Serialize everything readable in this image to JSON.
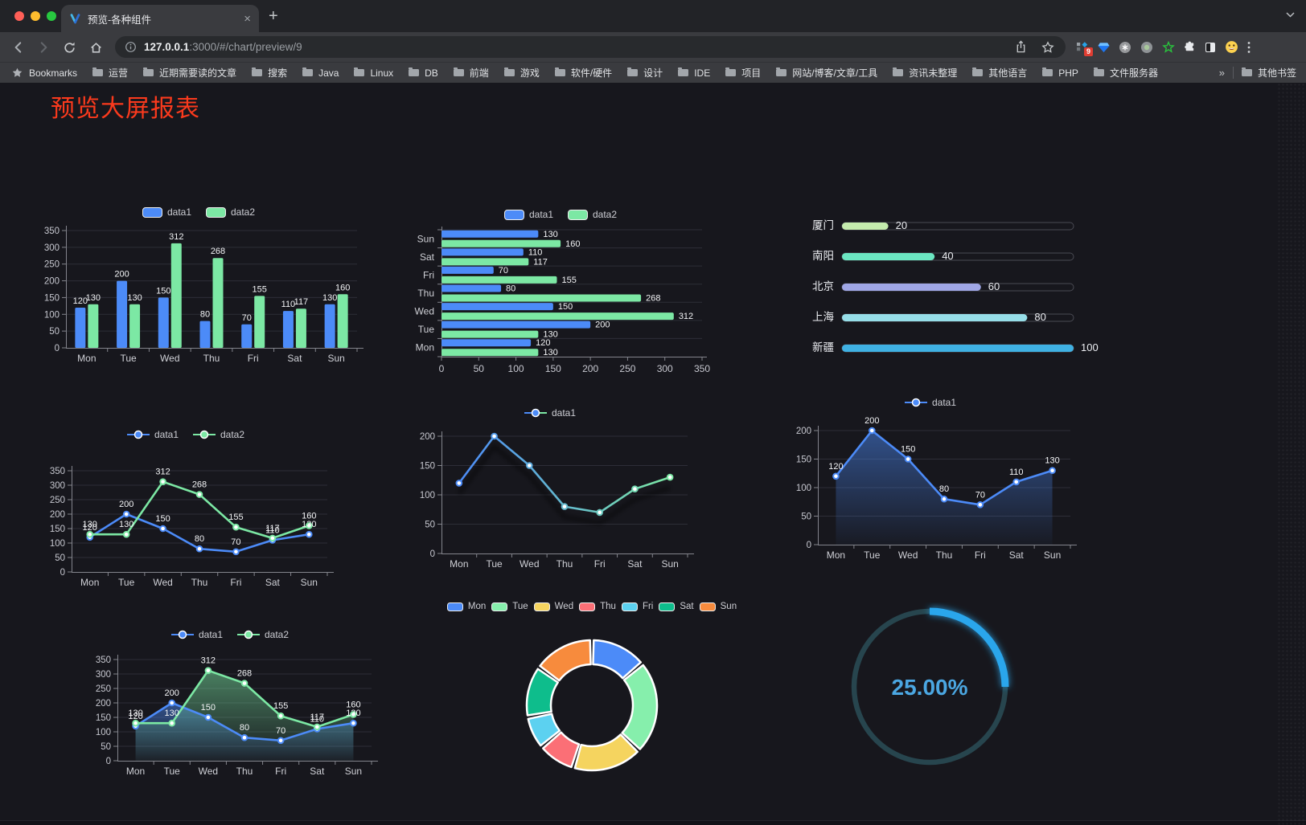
{
  "browser": {
    "tab": {
      "title": "预览-各种组件",
      "close_glyph": "×"
    },
    "new_tab_glyph": "+",
    "url": {
      "host": "127.0.0.1",
      "rest": ":3000/#/chart/preview/9"
    },
    "extensions_badge": "9",
    "bookmarks_label": "Bookmarks",
    "bookmarks": [
      "运营",
      "近期需要读的文章",
      "搜索",
      "Java",
      "Linux",
      "DB",
      "前端",
      "游戏",
      "软件/硬件",
      "设计",
      "IDE",
      "项目",
      "网站/博客/文章/工具",
      "资讯未整理",
      "其他语言",
      "PHP",
      "文件服务器"
    ],
    "bookmarks_overflow": "»",
    "other_bookmarks": "其他书签"
  },
  "page": {
    "title": "预览大屏报表",
    "title_color": "#fb3a1d",
    "background": "#17171d"
  },
  "chart_data": [
    {
      "id": "bar-vertical",
      "type": "bar",
      "orientation": "vertical",
      "categories": [
        "Mon",
        "Tue",
        "Wed",
        "Thu",
        "Fri",
        "Sat",
        "Sun"
      ],
      "series": [
        {
          "name": "data1",
          "color": "#4C8BF8",
          "values": [
            120,
            200,
            150,
            80,
            70,
            110,
            130
          ]
        },
        {
          "name": "data2",
          "color": "#7CE8A4",
          "values": [
            130,
            130,
            312,
            268,
            155,
            117,
            160
          ]
        }
      ],
      "ylim": [
        0,
        350
      ],
      "ytick_step": 50,
      "legend_position": "top",
      "grid": true,
      "value_labels": true
    },
    {
      "id": "bar-horizontal",
      "type": "bar",
      "orientation": "horizontal",
      "categories": [
        "Mon",
        "Tue",
        "Wed",
        "Thu",
        "Fri",
        "Sat",
        "Sun"
      ],
      "series": [
        {
          "name": "data1",
          "color": "#4C8BF8",
          "values": [
            120,
            200,
            150,
            80,
            70,
            110,
            130
          ]
        },
        {
          "name": "data2",
          "color": "#7CE8A4",
          "values": [
            130,
            130,
            312,
            268,
            155,
            117,
            160
          ]
        }
      ],
      "xlim": [
        0,
        350
      ],
      "xtick_step": 50,
      "legend_position": "top",
      "value_labels": true
    },
    {
      "id": "progress-bars",
      "type": "bar",
      "style": "progress",
      "items": [
        {
          "label": "厦门",
          "value": 20,
          "color": "#c4ebad"
        },
        {
          "label": "南阳",
          "value": 40,
          "color": "#6be6c1"
        },
        {
          "label": "北京",
          "value": 60,
          "color": "#a0a7e6"
        },
        {
          "label": "上海",
          "value": 80,
          "color": "#96dee8"
        },
        {
          "label": "新疆",
          "value": 100,
          "color": "#3fb1e3"
        }
      ],
      "xlim": [
        0,
        100
      ],
      "xticks": [
        0,
        20,
        40,
        60,
        80,
        100
      ]
    },
    {
      "id": "line-double",
      "type": "line",
      "categories": [
        "Mon",
        "Tue",
        "Wed",
        "Thu",
        "Fri",
        "Sat",
        "Sun"
      ],
      "series": [
        {
          "name": "data1",
          "color": "#4C8BF8",
          "values": [
            120,
            200,
            150,
            80,
            70,
            110,
            130
          ]
        },
        {
          "name": "data2",
          "color": "#7CE8A4",
          "values": [
            130,
            130,
            312,
            268,
            155,
            117,
            160
          ]
        }
      ],
      "ylim": [
        0,
        350
      ],
      "ytick_step": 50,
      "legend_position": "top",
      "value_labels": true
    },
    {
      "id": "line-gradient",
      "type": "line",
      "categories": [
        "Mon",
        "Tue",
        "Wed",
        "Thu",
        "Fri",
        "Sat",
        "Sun"
      ],
      "series": [
        {
          "name": "data1",
          "gradient": [
            "#4C8BF8",
            "#7CE8A4"
          ],
          "values": [
            120,
            200,
            150,
            80,
            70,
            110,
            130
          ]
        }
      ],
      "ylim": [
        0,
        200
      ],
      "ytick_step": 50,
      "legend_position": "top",
      "value_labels": false,
      "shadow": true
    },
    {
      "id": "area-single",
      "type": "area",
      "categories": [
        "Mon",
        "Tue",
        "Wed",
        "Thu",
        "Fri",
        "Sat",
        "Sun"
      ],
      "series": [
        {
          "name": "data1",
          "color": "#4C8BF8",
          "values": [
            120,
            200,
            150,
            80,
            70,
            110,
            130
          ]
        }
      ],
      "ylim": [
        0,
        200
      ],
      "ytick_step": 50,
      "legend_position": "top",
      "value_labels": true
    },
    {
      "id": "area-double",
      "type": "area",
      "categories": [
        "Mon",
        "Tue",
        "Wed",
        "Thu",
        "Fri",
        "Sat",
        "Sun"
      ],
      "series": [
        {
          "name": "data1",
          "color": "#4C8BF8",
          "values": [
            120,
            200,
            150,
            80,
            70,
            110,
            130
          ]
        },
        {
          "name": "data2",
          "color": "#7CE8A4",
          "values": [
            130,
            130,
            312,
            268,
            155,
            117,
            160
          ]
        }
      ],
      "ylim": [
        0,
        350
      ],
      "ytick_step": 50,
      "legend_position": "top",
      "value_labels": true
    },
    {
      "id": "donut-week",
      "type": "pie",
      "inner_radius_ratio": 0.63,
      "labels": [
        "Mon",
        "Tue",
        "Wed",
        "Thu",
        "Fri",
        "Sat",
        "Sun"
      ],
      "values": [
        120,
        200,
        150,
        80,
        70,
        110,
        130
      ],
      "colors": [
        "#4C8BF8",
        "#86EFAC",
        "#F5D45F",
        "#FB6F76",
        "#5CD1F0",
        "#0EBD8C",
        "#F78B3D"
      ],
      "legend_position": "top"
    },
    {
      "id": "gauge-percent",
      "type": "gauge",
      "percent": 25,
      "value_label": "25.00%",
      "arc_color": "#2CA6EC",
      "track_color": "#27454e",
      "text_color": "#4BA7E2"
    }
  ]
}
